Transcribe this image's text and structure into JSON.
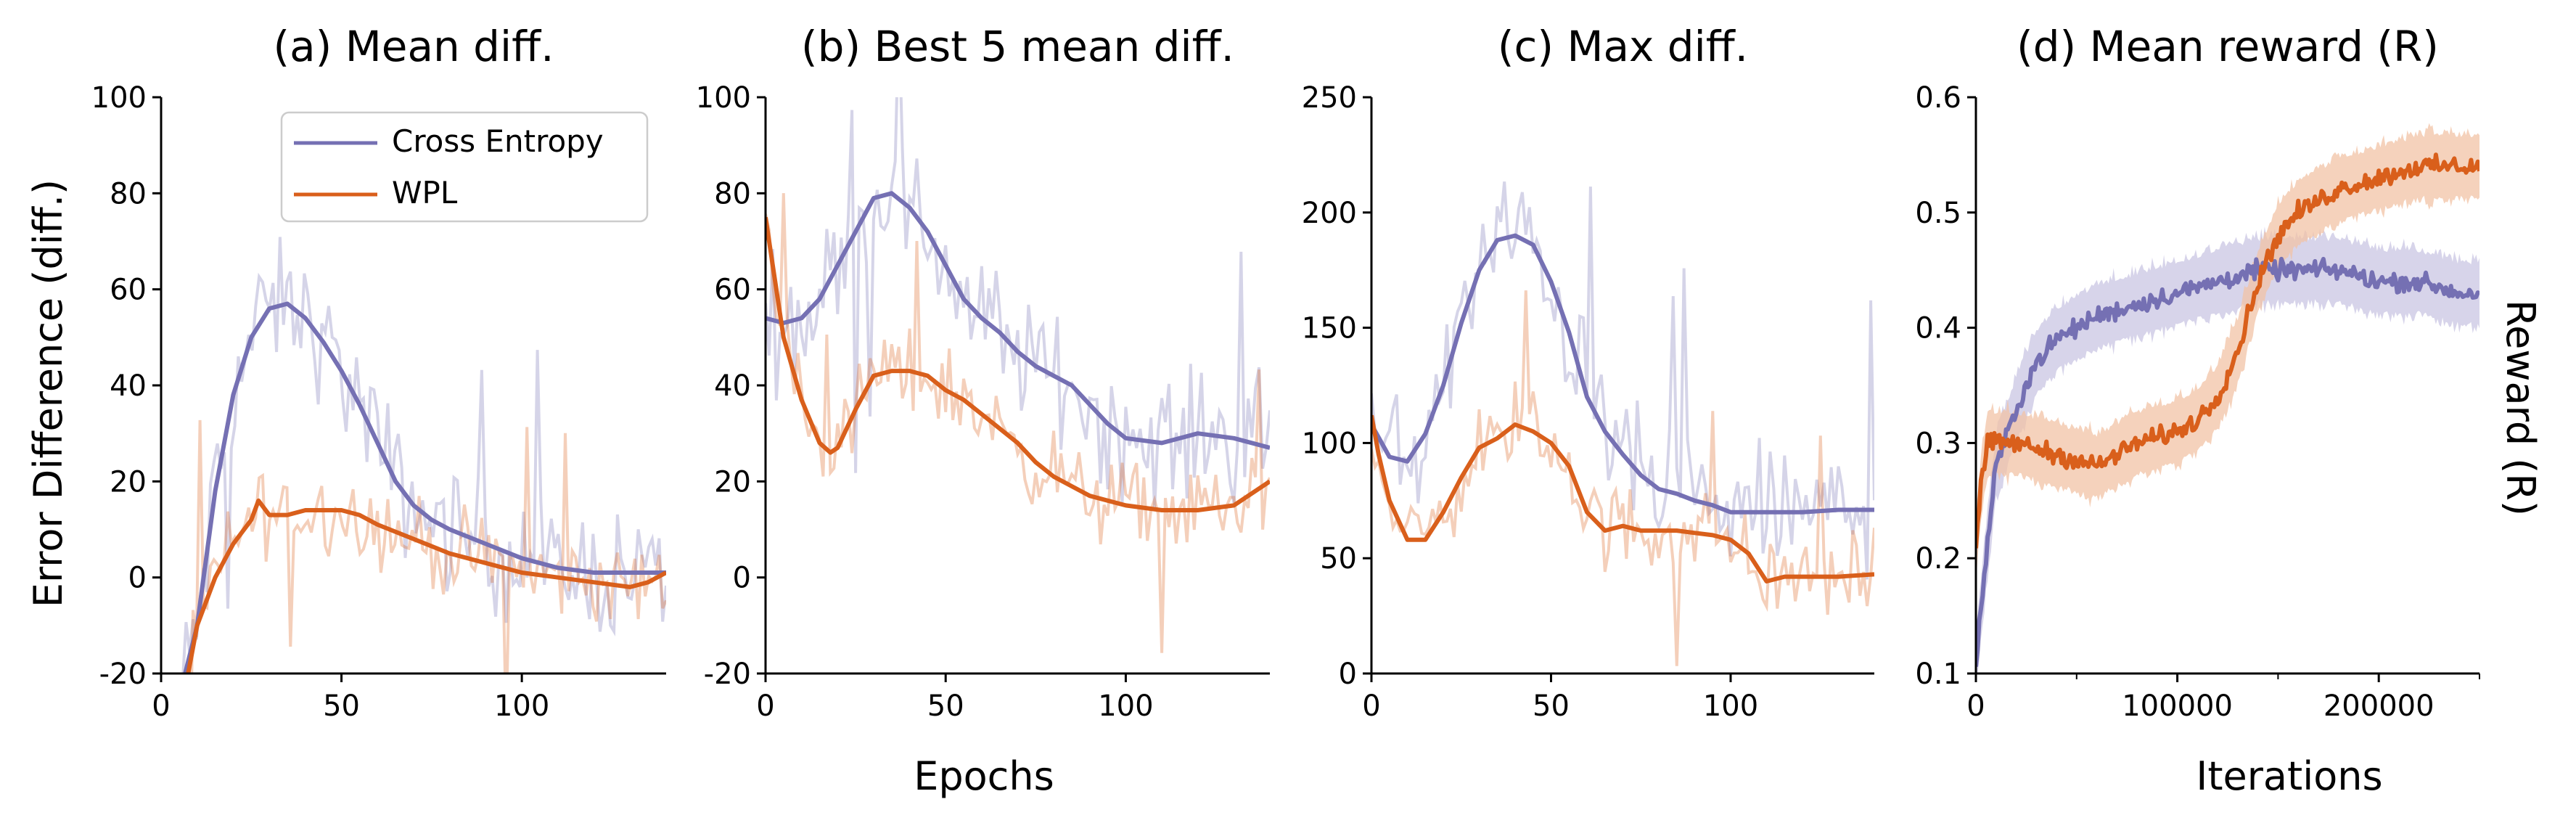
{
  "figure": {
    "shared_xlabel_epochs": "Epochs",
    "shared_ylabel": "Error Difference (diff.)",
    "right_ylabel": "Reward (R)",
    "legend": {
      "entries": [
        {
          "name": "Cross Entropy",
          "color": "#7570b3"
        },
        {
          "name": "WPL",
          "color": "#d95f1b"
        }
      ]
    },
    "colors": {
      "ce_line": "#7570b3",
      "ce_band": "#c9c6e3",
      "wpl_line": "#d95f1b",
      "wpl_band": "#f2c3a6"
    }
  },
  "chart_data": [
    {
      "type": "line",
      "title": "(a) Mean diff.",
      "xlabel": "",
      "ylabel": "Error Difference (diff.)",
      "xlim": [
        0,
        140
      ],
      "ylim": [
        -20,
        100
      ],
      "xticks": [
        0,
        50,
        100
      ],
      "yticks": [
        -20,
        0,
        20,
        40,
        60,
        80,
        100
      ],
      "grid": false,
      "legend_position": "top-right",
      "series": [
        {
          "name": "Cross Entropy",
          "x": [
            5,
            10,
            15,
            20,
            25,
            30,
            35,
            40,
            45,
            50,
            55,
            60,
            65,
            70,
            75,
            80,
            90,
            100,
            110,
            120,
            130,
            140
          ],
          "y": [
            -25,
            -10,
            18,
            38,
            50,
            56,
            57,
            54,
            49,
            43,
            36,
            28,
            20,
            15,
            12,
            10,
            7,
            4,
            2,
            1,
            1,
            1
          ]
        },
        {
          "name": "WPL",
          "x": [
            5,
            7,
            10,
            15,
            20,
            25,
            27,
            30,
            35,
            40,
            45,
            50,
            55,
            60,
            70,
            80,
            90,
            100,
            110,
            120,
            130,
            135,
            140
          ],
          "y": [
            -25,
            -22,
            -10,
            0,
            7,
            12,
            16,
            13,
            13,
            14,
            14,
            14,
            13,
            11,
            8,
            5,
            3,
            1,
            0,
            -1,
            -2,
            -1,
            1
          ]
        }
      ]
    },
    {
      "type": "line",
      "title": "(b) Best 5 mean diff.",
      "xlabel": "Epochs",
      "ylabel": "",
      "xlim": [
        0,
        140
      ],
      "ylim": [
        -20,
        100
      ],
      "xticks": [
        0,
        50,
        100
      ],
      "yticks": [
        -20,
        0,
        20,
        40,
        60,
        80,
        100
      ],
      "grid": false,
      "series": [
        {
          "name": "Cross Entropy",
          "x": [
            0,
            5,
            10,
            15,
            20,
            25,
            30,
            35,
            40,
            45,
            50,
            55,
            60,
            65,
            70,
            75,
            80,
            85,
            90,
            95,
            100,
            110,
            120,
            130,
            140
          ],
          "y": [
            54,
            53,
            54,
            58,
            65,
            72,
            79,
            80,
            77,
            72,
            65,
            58,
            54,
            51,
            47,
            44,
            42,
            40,
            36,
            32,
            29,
            28,
            30,
            29,
            27
          ]
        },
        {
          "name": "WPL",
          "x": [
            0,
            2,
            5,
            10,
            15,
            18,
            20,
            25,
            30,
            35,
            40,
            45,
            50,
            55,
            60,
            65,
            70,
            75,
            80,
            85,
            90,
            100,
            110,
            120,
            130,
            140
          ],
          "y": [
            75,
            65,
            50,
            37,
            28,
            26,
            27,
            35,
            42,
            43,
            43,
            42,
            39,
            37,
            34,
            31,
            28,
            24,
            21,
            19,
            17,
            15,
            14,
            14,
            15,
            20
          ]
        }
      ]
    },
    {
      "type": "line",
      "title": "(c) Max diff.",
      "xlabel": "",
      "ylabel": "",
      "xlim": [
        0,
        140
      ],
      "ylim": [
        0,
        250
      ],
      "xticks": [
        0,
        50,
        100
      ],
      "yticks": [
        0,
        50,
        100,
        150,
        200,
        250
      ],
      "grid": false,
      "series": [
        {
          "name": "Cross Entropy",
          "x": [
            0,
            5,
            10,
            15,
            20,
            25,
            30,
            35,
            40,
            45,
            50,
            55,
            60,
            65,
            70,
            75,
            80,
            85,
            90,
            95,
            100,
            110,
            120,
            130,
            140
          ],
          "y": [
            108,
            94,
            92,
            104,
            125,
            152,
            175,
            188,
            190,
            186,
            170,
            148,
            120,
            105,
            95,
            86,
            80,
            78,
            75,
            73,
            70,
            70,
            70,
            71,
            71
          ]
        },
        {
          "name": "WPL",
          "x": [
            0,
            2,
            5,
            10,
            15,
            20,
            25,
            30,
            35,
            40,
            45,
            50,
            55,
            60,
            65,
            70,
            75,
            80,
            85,
            90,
            95,
            100,
            105,
            110,
            115,
            120,
            130,
            140
          ],
          "y": [
            112,
            95,
            75,
            58,
            58,
            70,
            85,
            98,
            102,
            108,
            105,
            100,
            90,
            70,
            62,
            64,
            62,
            62,
            62,
            61,
            60,
            58,
            52,
            40,
            42,
            42,
            42,
            43
          ]
        }
      ]
    },
    {
      "type": "line",
      "title": "(d) Mean reward (R)",
      "xlabel": "Iterations",
      "ylabel": "Reward (R)",
      "xlim": [
        0,
        250000
      ],
      "ylim": [
        0.1,
        0.6
      ],
      "xticks": [
        0,
        100000,
        200000
      ],
      "yticks": [
        0.1,
        0.2,
        0.3,
        0.4,
        0.5,
        0.6
      ],
      "grid": false,
      "series": [
        {
          "name": "Cross Entropy",
          "x": [
            0,
            5000,
            10000,
            20000,
            30000,
            40000,
            60000,
            80000,
            100000,
            120000,
            140000,
            160000,
            180000,
            200000,
            220000,
            240000,
            250000
          ],
          "y": [
            0.11,
            0.2,
            0.28,
            0.33,
            0.37,
            0.39,
            0.41,
            0.42,
            0.43,
            0.44,
            0.45,
            0.45,
            0.45,
            0.44,
            0.44,
            0.43,
            0.43
          ]
        },
        {
          "name": "WPL",
          "x": [
            0,
            3000,
            6000,
            10000,
            20000,
            40000,
            60000,
            80000,
            100000,
            110000,
            120000,
            130000,
            140000,
            150000,
            160000,
            180000,
            200000,
            220000,
            240000,
            250000
          ],
          "y": [
            0.21,
            0.27,
            0.3,
            0.3,
            0.3,
            0.29,
            0.28,
            0.3,
            0.31,
            0.32,
            0.34,
            0.38,
            0.44,
            0.48,
            0.5,
            0.52,
            0.53,
            0.54,
            0.54,
            0.54
          ]
        }
      ]
    }
  ]
}
